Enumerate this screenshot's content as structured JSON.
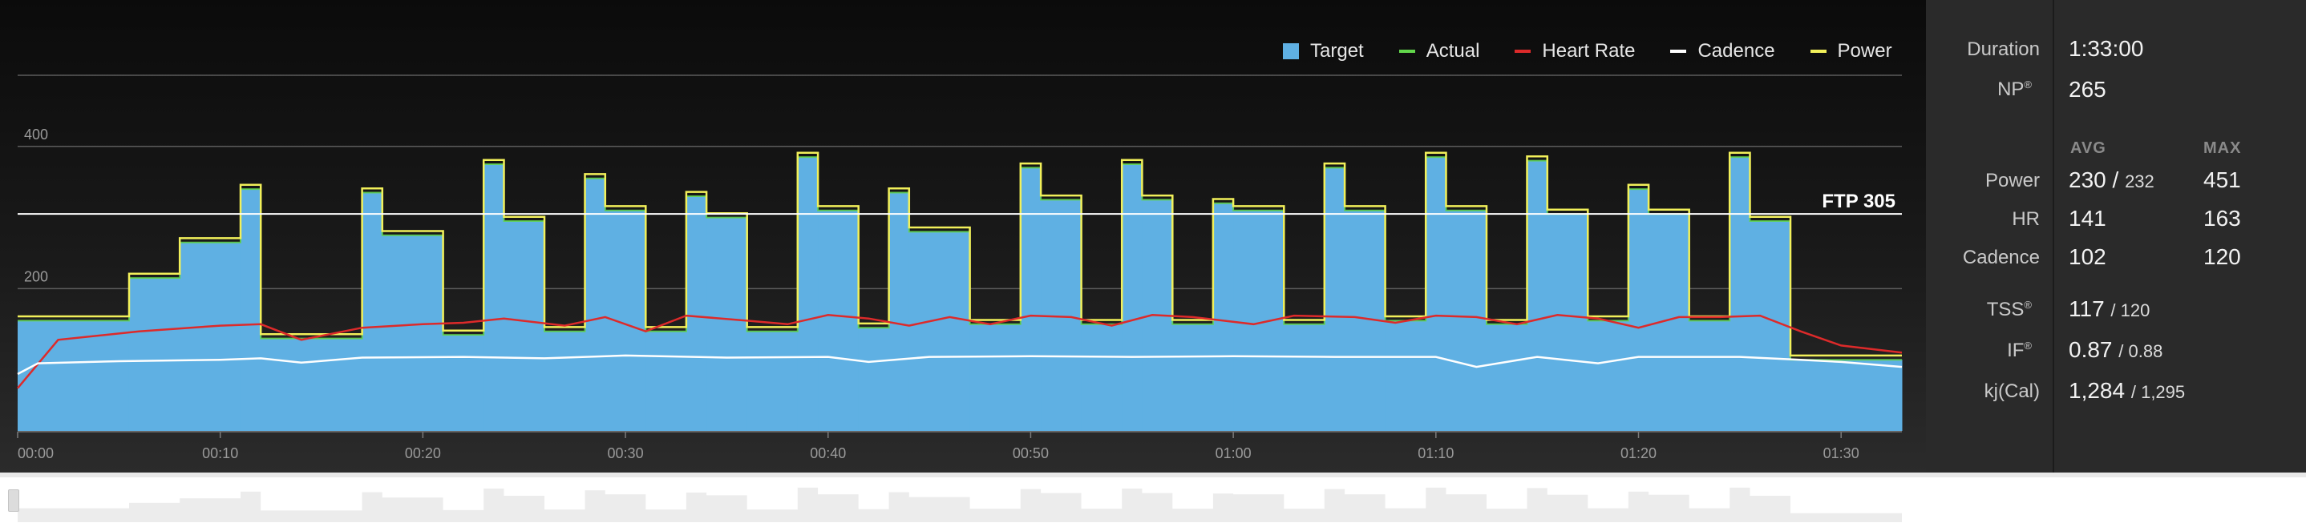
{
  "legend": {
    "target": "Target",
    "actual": "Actual",
    "heart_rate": "Heart Rate",
    "cadence": "Cadence",
    "power": "Power"
  },
  "colors": {
    "target": "#5fb0e3",
    "actual": "#62d64b",
    "heart_rate": "#dd2a2a",
    "cadence": "#ffffff",
    "power": "#f2f05a"
  },
  "ftp_label": "FTP 305",
  "stats": {
    "duration_label": "Duration",
    "duration_value": "1:33:00",
    "np_label": "NP",
    "np_value": "265",
    "avg_header": "AVG",
    "max_header": "MAX",
    "power_label": "Power",
    "power_avg": "230 /",
    "power_avg2": "232",
    "power_max": "451",
    "hr_label": "HR",
    "hr_avg": "141",
    "hr_max": "163",
    "cadence_label": "Cadence",
    "cadence_avg": "102",
    "cadence_max": "120",
    "tss_label": "TSS",
    "tss_value": "117",
    "tss_target": "/ 120",
    "if_label": "IF",
    "if_value": "0.87",
    "if_target": "/ 0.88",
    "kj_label": "kj(Cal)",
    "kj_value": "1,284",
    "kj_target": "/ 1,295",
    "superscript": "®"
  },
  "chart_data": {
    "type": "area",
    "xlabel": "",
    "ylabel": "",
    "xlim_min": [
      0,
      93
    ],
    "ylim": [
      0,
      500
    ],
    "x_ticks": [
      "00:00",
      "00:10",
      "00:20",
      "00:30",
      "00:40",
      "00:50",
      "01:00",
      "01:10",
      "01:20",
      "01:30"
    ],
    "x_tick_values_min": [
      0,
      10,
      20,
      30,
      40,
      50,
      60,
      70,
      80,
      90
    ],
    "y_ticks": [
      "400",
      "200"
    ],
    "y_tick_values": [
      400,
      200
    ],
    "ftp": 305,
    "series": [
      {
        "name": "Target",
        "step_segments": [
          [
            0,
            5.5,
            155
          ],
          [
            5.5,
            8,
            215
          ],
          [
            8,
            11,
            265
          ],
          [
            11,
            12,
            340
          ],
          [
            12,
            17,
            130
          ],
          [
            17,
            18,
            335
          ],
          [
            18,
            21,
            275
          ],
          [
            21,
            23,
            135
          ],
          [
            23,
            24,
            375
          ],
          [
            24,
            26,
            295
          ],
          [
            26,
            28,
            140
          ],
          [
            28,
            29,
            355
          ],
          [
            29,
            31,
            310
          ],
          [
            31,
            33,
            140
          ],
          [
            33,
            34,
            330
          ],
          [
            34,
            36,
            300
          ],
          [
            36,
            38.5,
            140
          ],
          [
            38.5,
            39.5,
            385
          ],
          [
            39.5,
            41.5,
            310
          ],
          [
            41.5,
            43,
            145
          ],
          [
            43,
            44,
            335
          ],
          [
            44,
            47,
            280
          ],
          [
            47,
            49.5,
            150
          ],
          [
            49.5,
            50.5,
            370
          ],
          [
            50.5,
            52.5,
            325
          ],
          [
            52.5,
            54.5,
            150
          ],
          [
            54.5,
            55.5,
            375
          ],
          [
            55.5,
            57,
            325
          ],
          [
            57,
            59,
            150
          ],
          [
            59,
            60,
            320
          ],
          [
            60,
            62.5,
            310
          ],
          [
            62.5,
            64.5,
            150
          ],
          [
            64.5,
            65.5,
            370
          ],
          [
            65.5,
            67.5,
            310
          ],
          [
            67.5,
            69.5,
            155
          ],
          [
            69.5,
            70.5,
            385
          ],
          [
            70.5,
            72.5,
            310
          ],
          [
            72.5,
            74.5,
            150
          ],
          [
            74.5,
            75.5,
            380
          ],
          [
            75.5,
            77.5,
            305
          ],
          [
            77.5,
            79.5,
            155
          ],
          [
            79.5,
            80.5,
            340
          ],
          [
            80.5,
            82.5,
            305
          ],
          [
            82.5,
            84.5,
            155
          ],
          [
            84.5,
            85.5,
            385
          ],
          [
            85.5,
            87.5,
            295
          ],
          [
            87.5,
            93,
            100
          ]
        ]
      },
      {
        "name": "Actual",
        "follows": "Target"
      },
      {
        "name": "Heart Rate",
        "points": [
          [
            0,
            60
          ],
          [
            2,
            128
          ],
          [
            6,
            140
          ],
          [
            10,
            148
          ],
          [
            12,
            150
          ],
          [
            14,
            128
          ],
          [
            17,
            145
          ],
          [
            20,
            150
          ],
          [
            22,
            152
          ],
          [
            24,
            158
          ],
          [
            27,
            148
          ],
          [
            29,
            160
          ],
          [
            31,
            140
          ],
          [
            33,
            162
          ],
          [
            36,
            155
          ],
          [
            38,
            150
          ],
          [
            40,
            163
          ],
          [
            42,
            158
          ],
          [
            44,
            148
          ],
          [
            46,
            160
          ],
          [
            48,
            150
          ],
          [
            50,
            162
          ],
          [
            52,
            160
          ],
          [
            54,
            148
          ],
          [
            56,
            163
          ],
          [
            58,
            160
          ],
          [
            61,
            150
          ],
          [
            63,
            162
          ],
          [
            66,
            160
          ],
          [
            68,
            152
          ],
          [
            70,
            162
          ],
          [
            72,
            160
          ],
          [
            74,
            150
          ],
          [
            76,
            163
          ],
          [
            78,
            158
          ],
          [
            80,
            145
          ],
          [
            82,
            160
          ],
          [
            84,
            160
          ],
          [
            86,
            162
          ],
          [
            88,
            140
          ],
          [
            90,
            120
          ],
          [
            93,
            110
          ]
        ]
      },
      {
        "name": "Cadence",
        "points": [
          [
            0,
            80
          ],
          [
            1,
            95
          ],
          [
            5,
            98
          ],
          [
            10,
            100
          ],
          [
            12,
            102
          ],
          [
            14,
            96
          ],
          [
            17,
            103
          ],
          [
            22,
            104
          ],
          [
            26,
            102
          ],
          [
            30,
            106
          ],
          [
            35,
            103
          ],
          [
            40,
            104
          ],
          [
            42,
            97
          ],
          [
            45,
            104
          ],
          [
            50,
            105
          ],
          [
            55,
            104
          ],
          [
            60,
            105
          ],
          [
            65,
            104
          ],
          [
            70,
            104
          ],
          [
            72,
            90
          ],
          [
            75,
            104
          ],
          [
            78,
            95
          ],
          [
            80,
            104
          ],
          [
            85,
            104
          ],
          [
            88,
            100
          ],
          [
            90,
            97
          ],
          [
            93,
            90
          ]
        ]
      }
    ],
    "legend_position": "top-right",
    "grid": true
  }
}
